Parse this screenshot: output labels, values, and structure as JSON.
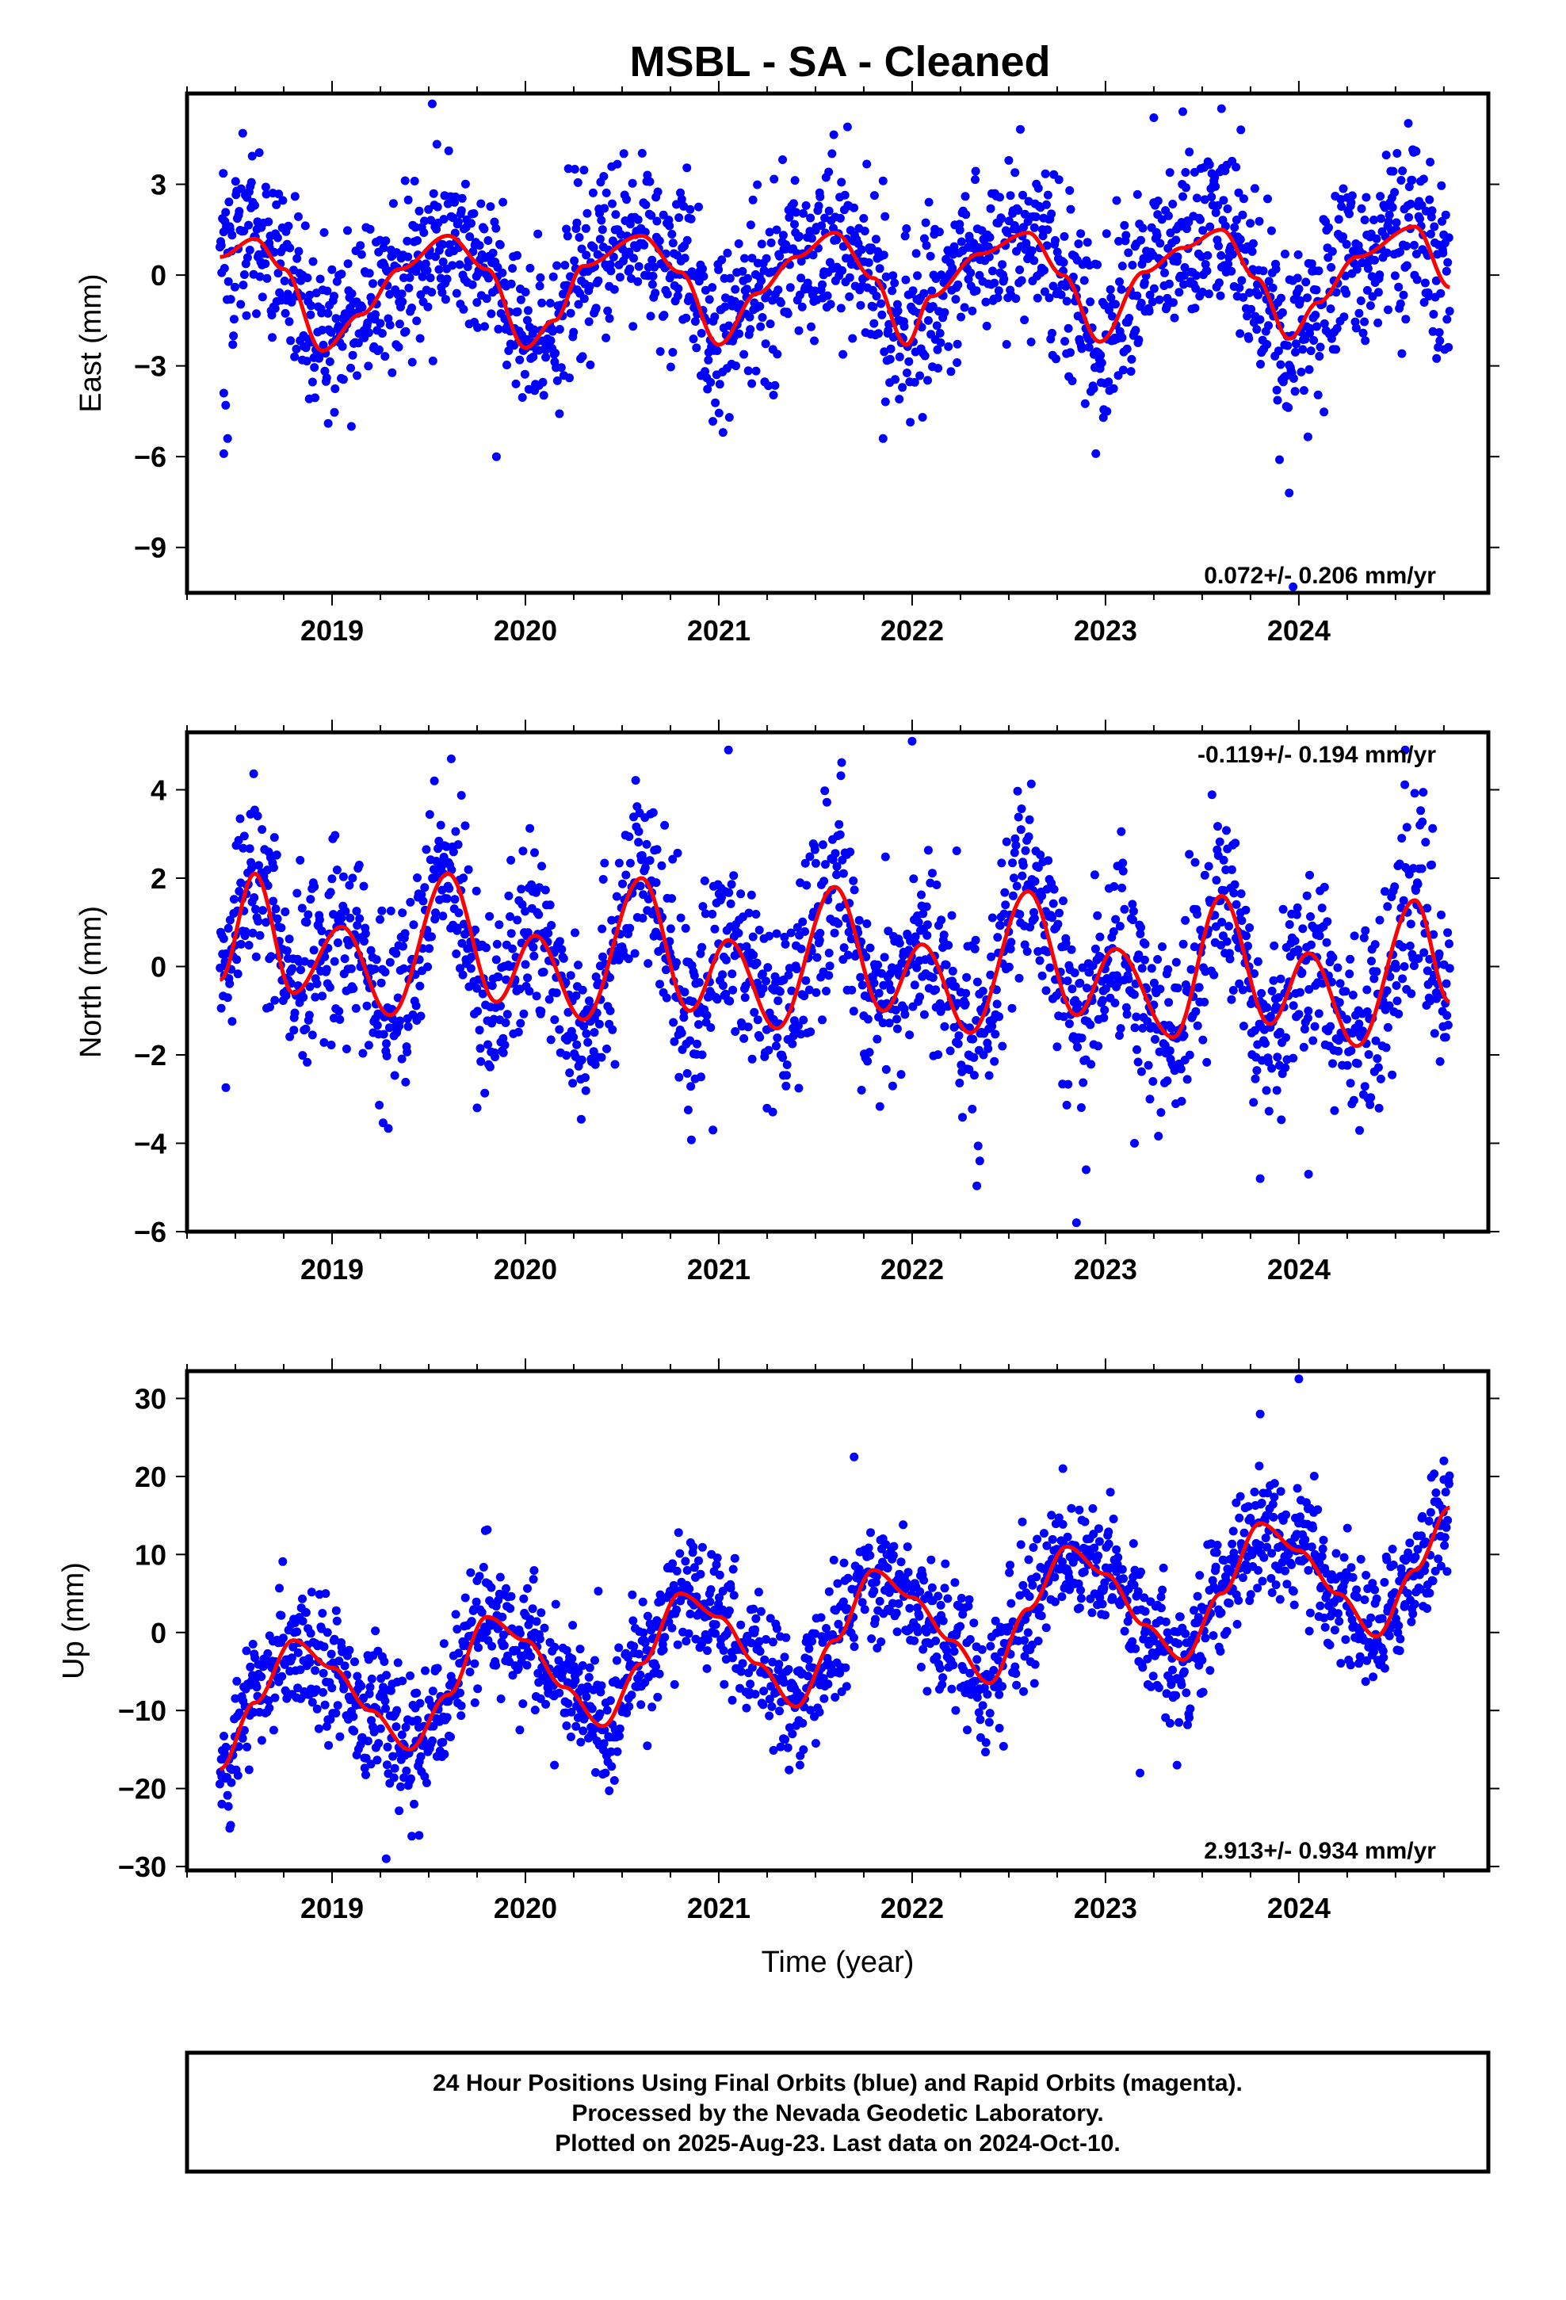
{
  "title": "MSBL  - SA - Cleaned",
  "x_axis_label": "Time (year)",
  "footer": {
    "line1": "24 Hour Positions Using Final Orbits (blue) and Rapid Orbits (magenta).",
    "line2": "Processed by the Nevada Geodetic Laboratory.",
    "line3": "Plotted on 2025-Aug-23. Last data on 2024-Oct-10."
  },
  "colors": {
    "points": "#0000ff",
    "model": "#ff0000",
    "frame": "#000000"
  },
  "chart_data": [
    {
      "type": "scatter",
      "component": "East",
      "ylabel": "East (mm)",
      "rate_label": "0.072+/- 0.206 mm/yr",
      "rate_position": "bottom-right",
      "xlim": [
        2018.25,
        2024.98
      ],
      "ylim": [
        -10.5,
        6
      ],
      "x_ticks": [
        2019,
        2020,
        2021,
        2022,
        2023,
        2024
      ],
      "y_ticks": [
        3,
        0,
        -3,
        -6,
        -9
      ],
      "data_start": 2018.42,
      "data_end": 2024.78,
      "model": {
        "description": "red seasonal fit",
        "points": [
          [
            2018.42,
            0.6
          ],
          [
            2018.6,
            1.2
          ],
          [
            2018.75,
            0.2
          ],
          [
            2018.95,
            -2.5
          ],
          [
            2019.15,
            -1.3
          ],
          [
            2019.35,
            0.2
          ],
          [
            2019.6,
            1.3
          ],
          [
            2019.8,
            0.2
          ],
          [
            2020.0,
            -2.4
          ],
          [
            2020.15,
            -1.5
          ],
          [
            2020.3,
            0.3
          ],
          [
            2020.6,
            1.3
          ],
          [
            2020.8,
            0.1
          ],
          [
            2021.0,
            -2.3
          ],
          [
            2021.2,
            -0.6
          ],
          [
            2021.4,
            0.6
          ],
          [
            2021.6,
            1.4
          ],
          [
            2021.8,
            -0.1
          ],
          [
            2021.97,
            -2.3
          ],
          [
            2022.1,
            -0.7
          ],
          [
            2022.35,
            0.7
          ],
          [
            2022.6,
            1.4
          ],
          [
            2022.78,
            0.0
          ],
          [
            2022.97,
            -2.2
          ],
          [
            2023.2,
            0.1
          ],
          [
            2023.4,
            0.9
          ],
          [
            2023.6,
            1.5
          ],
          [
            2023.78,
            -0.1
          ],
          [
            2023.95,
            -2.1
          ],
          [
            2024.1,
            -0.9
          ],
          [
            2024.3,
            0.6
          ],
          [
            2024.6,
            1.6
          ],
          [
            2024.78,
            -0.4
          ]
        ]
      },
      "scatter": {
        "description": "daily positions scattered around the fit",
        "spread_mm": 1.4,
        "count": 1900,
        "outliers": [
          [
            2018.44,
            -3.9
          ],
          [
            2018.45,
            -4.3
          ],
          [
            2018.46,
            -5.4
          ],
          [
            2018.44,
            -5.9
          ],
          [
            2023.25,
            5.2
          ],
          [
            2023.4,
            5.4
          ],
          [
            2023.6,
            5.5
          ],
          [
            2023.7,
            4.8
          ],
          [
            2023.9,
            -6.1
          ],
          [
            2023.95,
            -7.2
          ],
          [
            2019.85,
            -6.0
          ],
          [
            2022.95,
            -5.9
          ],
          [
            2021.85,
            -5.4
          ],
          [
            2019.1,
            -5.0
          ],
          [
            2018.98,
            -4.9
          ],
          [
            2023.97,
            -10.3
          ]
        ]
      }
    },
    {
      "type": "scatter",
      "component": "North",
      "ylabel": "North (mm)",
      "rate_label": "-0.119+/- 0.194 mm/yr",
      "rate_position": "top-right",
      "xlim": [
        2018.25,
        2024.98
      ],
      "ylim": [
        -6.0,
        5.3
      ],
      "x_ticks": [
        2019,
        2020,
        2021,
        2022,
        2023,
        2024
      ],
      "y_ticks": [
        4,
        2,
        0,
        -2,
        -4,
        -6
      ],
      "data_start": 2018.42,
      "data_end": 2024.78,
      "model": {
        "description": "red seasonal fit",
        "points": [
          [
            2018.42,
            -0.3
          ],
          [
            2018.6,
            2.1
          ],
          [
            2018.8,
            -0.6
          ],
          [
            2019.05,
            0.9
          ],
          [
            2019.3,
            -1.1
          ],
          [
            2019.6,
            2.1
          ],
          [
            2019.85,
            -0.8
          ],
          [
            2020.05,
            0.7
          ],
          [
            2020.3,
            -1.2
          ],
          [
            2020.6,
            2.0
          ],
          [
            2020.85,
            -1.0
          ],
          [
            2021.05,
            0.6
          ],
          [
            2021.3,
            -1.4
          ],
          [
            2021.6,
            1.8
          ],
          [
            2021.85,
            -1.0
          ],
          [
            2022.05,
            0.5
          ],
          [
            2022.3,
            -1.5
          ],
          [
            2022.6,
            1.7
          ],
          [
            2022.85,
            -1.1
          ],
          [
            2023.05,
            0.4
          ],
          [
            2023.35,
            -1.6
          ],
          [
            2023.6,
            1.6
          ],
          [
            2023.85,
            -1.3
          ],
          [
            2024.05,
            0.3
          ],
          [
            2024.3,
            -1.8
          ],
          [
            2024.6,
            1.5
          ],
          [
            2024.78,
            -0.8
          ]
        ]
      },
      "scatter": {
        "description": "daily positions scattered around the fit",
        "spread_mm": 1.05,
        "count": 1900,
        "outliers": [
          [
            2021.05,
            4.9
          ],
          [
            2022.0,
            5.1
          ],
          [
            2024.55,
            4.9
          ],
          [
            2022.85,
            -5.8
          ],
          [
            2022.9,
            -4.6
          ],
          [
            2023.8,
            -4.8
          ],
          [
            2024.05,
            -4.7
          ],
          [
            2022.35,
            -4.4
          ],
          [
            2019.75,
            -3.2
          ],
          [
            2020.97,
            -3.7
          ],
          [
            2023.15,
            -4.0
          ]
        ]
      }
    },
    {
      "type": "scatter",
      "component": "Up",
      "ylabel": "Up (mm)",
      "rate_label": "2.913+/- 0.934 mm/yr",
      "rate_position": "bottom-right",
      "xlim": [
        2018.25,
        2024.98
      ],
      "ylim": [
        -30.5,
        33.5
      ],
      "x_ticks": [
        2019,
        2020,
        2021,
        2022,
        2023,
        2024
      ],
      "y_ticks": [
        30,
        20,
        10,
        0,
        -10,
        -20,
        -30
      ],
      "data_start": 2018.42,
      "data_end": 2024.78,
      "model": {
        "description": "red seasonal fit",
        "points": [
          [
            2018.42,
            -17.5
          ],
          [
            2018.6,
            -9.0
          ],
          [
            2018.8,
            -1.0
          ],
          [
            2019.0,
            -4.5
          ],
          [
            2019.2,
            -10.0
          ],
          [
            2019.4,
            -15.0
          ],
          [
            2019.6,
            -8.0
          ],
          [
            2019.8,
            2.0
          ],
          [
            2020.0,
            -1.0
          ],
          [
            2020.2,
            -7.0
          ],
          [
            2020.4,
            -12.0
          ],
          [
            2020.6,
            -4.0
          ],
          [
            2020.8,
            5.0
          ],
          [
            2021.0,
            2.0
          ],
          [
            2021.2,
            -4.0
          ],
          [
            2021.4,
            -9.5
          ],
          [
            2021.6,
            -1.0
          ],
          [
            2021.8,
            8.0
          ],
          [
            2022.0,
            4.5
          ],
          [
            2022.2,
            -1.0
          ],
          [
            2022.4,
            -6.5
          ],
          [
            2022.6,
            3.0
          ],
          [
            2022.8,
            11.0
          ],
          [
            2023.0,
            7.5
          ],
          [
            2023.2,
            1.0
          ],
          [
            2023.4,
            -3.5
          ],
          [
            2023.6,
            5.0
          ],
          [
            2023.8,
            14.0
          ],
          [
            2024.0,
            10.5
          ],
          [
            2024.2,
            5.0
          ],
          [
            2024.4,
            -0.5
          ],
          [
            2024.6,
            8.0
          ],
          [
            2024.78,
            16.0
          ]
        ]
      },
      "scatter": {
        "description": "daily positions scattered around the fit",
        "spread_mm": 4.0,
        "count": 1900,
        "outliers": [
          [
            2024.0,
            32.5
          ],
          [
            2023.8,
            28.0
          ],
          [
            2021.7,
            22.5
          ],
          [
            2022.78,
            21.0
          ],
          [
            2019.28,
            -29.0
          ],
          [
            2019.45,
            -26.0
          ],
          [
            2018.43,
            -22.0
          ],
          [
            2020.15,
            -17.0
          ],
          [
            2021.42,
            -17.0
          ],
          [
            2023.37,
            -17.0
          ],
          [
            2024.75,
            22.0
          ]
        ]
      }
    }
  ]
}
